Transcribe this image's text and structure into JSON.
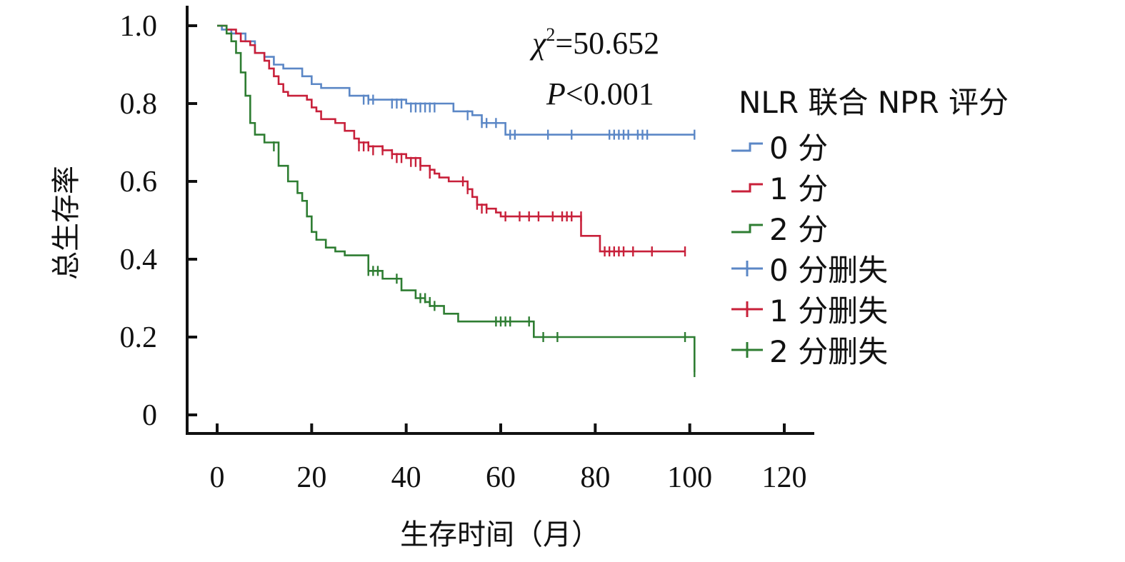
{
  "chart_data": {
    "type": "line",
    "subtype": "kaplan-meier",
    "xlabel": "生存时间（月）",
    "ylabel": "总生存率",
    "xlim": [
      0,
      120
    ],
    "ylim": [
      0,
      1.0
    ],
    "xticks": [
      "0",
      "20",
      "40",
      "60",
      "80",
      "100",
      "120"
    ],
    "yticks": [
      "0",
      "0.2",
      "0.4",
      "0.6",
      "0.8",
      "1.0"
    ],
    "grid": false,
    "annotations": {
      "chi_symbol": "χ",
      "chi_sup": "2",
      "chi_value": "=50.652",
      "p_symbol": "P",
      "p_value": "<0.001"
    },
    "legend": {
      "title": "NLR 联合 NPR 评分",
      "placement": "right",
      "entries": [
        {
          "label": "0 分",
          "kind": "step",
          "color": "#5b87c6"
        },
        {
          "label": "1 分",
          "kind": "step",
          "color": "#c8203a"
        },
        {
          "label": "2 分",
          "kind": "step",
          "color": "#2e7d32"
        },
        {
          "label": "0 分删失",
          "kind": "censor",
          "color": "#5b87c6"
        },
        {
          "label": "1 分删失",
          "kind": "censor",
          "color": "#c8203a"
        },
        {
          "label": "2 分删失",
          "kind": "censor",
          "color": "#2e7d32"
        }
      ]
    },
    "series": [
      {
        "name": "0 分",
        "color": "#5b87c6",
        "steps": [
          [
            0,
            1.0
          ],
          [
            1,
            0.99
          ],
          [
            3,
            0.98
          ],
          [
            6,
            0.96
          ],
          [
            8,
            0.93
          ],
          [
            10,
            0.92
          ],
          [
            12,
            0.9
          ],
          [
            14,
            0.89
          ],
          [
            18,
            0.87
          ],
          [
            20,
            0.85
          ],
          [
            22,
            0.84
          ],
          [
            28,
            0.82
          ],
          [
            32,
            0.81
          ],
          [
            40,
            0.8
          ],
          [
            50,
            0.78
          ],
          [
            54,
            0.77
          ],
          [
            56,
            0.75
          ],
          [
            61,
            0.72
          ],
          [
            101,
            0.72
          ]
        ],
        "censored": [
          [
            31,
            0.81
          ],
          [
            32,
            0.81
          ],
          [
            33,
            0.81
          ],
          [
            37,
            0.8
          ],
          [
            38,
            0.8
          ],
          [
            39,
            0.8
          ],
          [
            41,
            0.79
          ],
          [
            42,
            0.79
          ],
          [
            43,
            0.79
          ],
          [
            44,
            0.79
          ],
          [
            45,
            0.79
          ],
          [
            46,
            0.79
          ],
          [
            53,
            0.77
          ],
          [
            56,
            0.75
          ],
          [
            57,
            0.75
          ],
          [
            59,
            0.75
          ],
          [
            62,
            0.72
          ],
          [
            63,
            0.72
          ],
          [
            70,
            0.72
          ],
          [
            75,
            0.72
          ],
          [
            83,
            0.72
          ],
          [
            84,
            0.72
          ],
          [
            85,
            0.72
          ],
          [
            86,
            0.72
          ],
          [
            87,
            0.72
          ],
          [
            89,
            0.72
          ],
          [
            90,
            0.72
          ],
          [
            91,
            0.72
          ],
          [
            101,
            0.72
          ]
        ]
      },
      {
        "name": "1 分",
        "color": "#c8203a",
        "steps": [
          [
            0,
            1.0
          ],
          [
            2,
            0.99
          ],
          [
            4,
            0.98
          ],
          [
            5,
            0.96
          ],
          [
            7,
            0.95
          ],
          [
            8,
            0.93
          ],
          [
            10,
            0.91
          ],
          [
            11,
            0.89
          ],
          [
            12,
            0.87
          ],
          [
            13,
            0.85
          ],
          [
            14,
            0.83
          ],
          [
            15,
            0.82
          ],
          [
            19,
            0.81
          ],
          [
            20,
            0.79
          ],
          [
            21,
            0.78
          ],
          [
            22,
            0.76
          ],
          [
            25,
            0.75
          ],
          [
            27,
            0.73
          ],
          [
            29,
            0.71
          ],
          [
            30,
            0.7
          ],
          [
            32,
            0.69
          ],
          [
            35,
            0.68
          ],
          [
            37,
            0.67
          ],
          [
            40,
            0.66
          ],
          [
            43,
            0.64
          ],
          [
            45,
            0.63
          ],
          [
            46,
            0.62
          ],
          [
            47,
            0.61
          ],
          [
            49,
            0.6
          ],
          [
            53,
            0.58
          ],
          [
            54,
            0.56
          ],
          [
            55,
            0.54
          ],
          [
            57,
            0.53
          ],
          [
            59,
            0.52
          ],
          [
            60,
            0.51
          ],
          [
            77,
            0.46
          ],
          [
            81,
            0.42
          ],
          [
            99,
            0.42
          ]
        ],
        "censored": [
          [
            30,
            0.69
          ],
          [
            31,
            0.69
          ],
          [
            32,
            0.69
          ],
          [
            33,
            0.68
          ],
          [
            35,
            0.68
          ],
          [
            37,
            0.67
          ],
          [
            38,
            0.66
          ],
          [
            39,
            0.66
          ],
          [
            41,
            0.65
          ],
          [
            42,
            0.65
          ],
          [
            43,
            0.64
          ],
          [
            45,
            0.62
          ],
          [
            52,
            0.6
          ],
          [
            53,
            0.58
          ],
          [
            55,
            0.54
          ],
          [
            56,
            0.53
          ],
          [
            57,
            0.53
          ],
          [
            61,
            0.51
          ],
          [
            64,
            0.51
          ],
          [
            66,
            0.51
          ],
          [
            68,
            0.51
          ],
          [
            71,
            0.51
          ],
          [
            73,
            0.51
          ],
          [
            74,
            0.51
          ],
          [
            75,
            0.51
          ],
          [
            77,
            0.51
          ],
          [
            82,
            0.42
          ],
          [
            83,
            0.42
          ],
          [
            84,
            0.42
          ],
          [
            85,
            0.42
          ],
          [
            86,
            0.42
          ],
          [
            88,
            0.42
          ],
          [
            92,
            0.42
          ],
          [
            99,
            0.42
          ]
        ]
      },
      {
        "name": "2 分",
        "color": "#2e7d32",
        "steps": [
          [
            0,
            1.0
          ],
          [
            2,
            0.98
          ],
          [
            3,
            0.96
          ],
          [
            4,
            0.93
          ],
          [
            5,
            0.88
          ],
          [
            6,
            0.82
          ],
          [
            7,
            0.75
          ],
          [
            8,
            0.72
          ],
          [
            10,
            0.7
          ],
          [
            13,
            0.64
          ],
          [
            15,
            0.6
          ],
          [
            17,
            0.57
          ],
          [
            18,
            0.55
          ],
          [
            19,
            0.51
          ],
          [
            20,
            0.47
          ],
          [
            21,
            0.45
          ],
          [
            23,
            0.43
          ],
          [
            25,
            0.42
          ],
          [
            27,
            0.41
          ],
          [
            32,
            0.37
          ],
          [
            35,
            0.35
          ],
          [
            39,
            0.32
          ],
          [
            42,
            0.3
          ],
          [
            44,
            0.29
          ],
          [
            45,
            0.28
          ],
          [
            48,
            0.26
          ],
          [
            51,
            0.24
          ],
          [
            67,
            0.2
          ],
          [
            101,
            0.2
          ],
          [
            101,
            0.11
          ]
        ],
        "censored": [
          [
            12,
            0.69
          ],
          [
            32,
            0.37
          ],
          [
            33,
            0.37
          ],
          [
            34,
            0.37
          ],
          [
            38,
            0.35
          ],
          [
            43,
            0.3
          ],
          [
            44,
            0.3
          ],
          [
            45,
            0.29
          ],
          [
            46,
            0.28
          ],
          [
            59,
            0.24
          ],
          [
            60,
            0.24
          ],
          [
            61,
            0.24
          ],
          [
            62,
            0.24
          ],
          [
            66,
            0.24
          ],
          [
            69,
            0.2
          ],
          [
            72,
            0.2
          ],
          [
            99,
            0.2
          ],
          [
            101,
            0.11
          ]
        ]
      }
    ]
  }
}
